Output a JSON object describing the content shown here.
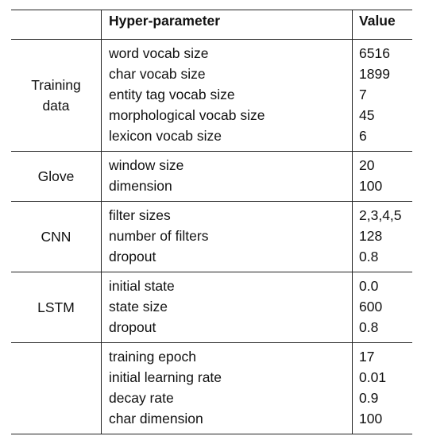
{
  "table": {
    "header": {
      "group": "",
      "parameter": "Hyper-parameter",
      "value": "Value"
    },
    "sections": [
      {
        "group": "Training\ndata",
        "rows": [
          {
            "parameter": "word vocab size",
            "value": "6516"
          },
          {
            "parameter": "char vocab size",
            "value": "1899"
          },
          {
            "parameter": "entity tag vocab size",
            "value": "7"
          },
          {
            "parameter": "morphological vocab size",
            "value": "45"
          },
          {
            "parameter": "lexicon vocab size",
            "value": "6"
          }
        ]
      },
      {
        "group": "Glove",
        "rows": [
          {
            "parameter": "window size",
            "value": "20"
          },
          {
            "parameter": "dimension",
            "value": "100"
          }
        ]
      },
      {
        "group": "CNN",
        "rows": [
          {
            "parameter": "filter sizes",
            "value": "2,3,4,5"
          },
          {
            "parameter": "number of filters",
            "value": "128"
          },
          {
            "parameter": "dropout",
            "value": "0.8"
          }
        ]
      },
      {
        "group": "LSTM",
        "rows": [
          {
            "parameter": "initial state",
            "value": "0.0"
          },
          {
            "parameter": "state size",
            "value": "600"
          },
          {
            "parameter": "dropout",
            "value": "0.8"
          }
        ]
      },
      {
        "group": "",
        "rows": [
          {
            "parameter": "training epoch",
            "value": "17"
          },
          {
            "parameter": "initial learning rate",
            "value": "0.01"
          },
          {
            "parameter": "decay rate",
            "value": "0.9"
          },
          {
            "parameter": "char dimension",
            "value": "100"
          }
        ]
      }
    ]
  }
}
